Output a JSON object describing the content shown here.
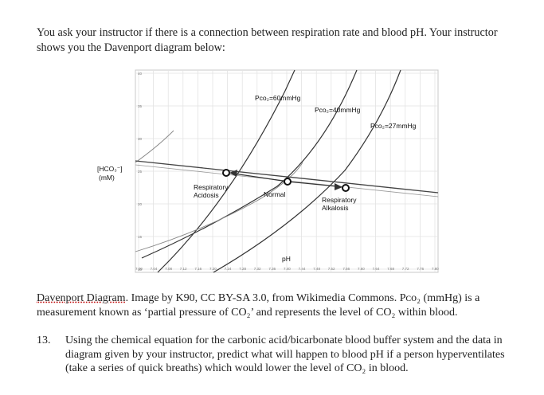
{
  "intro": {
    "text": "You ask your instructor if there is a connection between respiration rate and blood pH. Your instructor shows you the Davenport diagram below:"
  },
  "diagram": {
    "y_axis_label_line1": "[HCO₃⁻]",
    "y_axis_label_line2": "(mM)",
    "x_axis_label": "pH",
    "y_ticks": [
      "40",
      "35",
      "30",
      "25",
      "20",
      "15",
      "10"
    ],
    "x_ticks": [
      "7.00",
      "7.04",
      "7.08",
      "7.12",
      "7.16",
      "7.20",
      "7.24",
      "7.28",
      "7.32",
      "7.36",
      "7.40",
      "7.44",
      "7.48",
      "7.52",
      "7.56",
      "7.60",
      "7.64",
      "7.68",
      "7.72",
      "7.76",
      "7.80"
    ],
    "isobars": [
      {
        "label": "Pco₂=60mmHg"
      },
      {
        "label": "Pco₂=40mmHg"
      },
      {
        "label": "Pco₂=27mmHg"
      }
    ],
    "points": [
      {
        "label_line1": "Respiratory",
        "label_line2": "Acidosis"
      },
      {
        "label_line1": "Normal",
        "label_line2": ""
      },
      {
        "label_line1": "Respiratory",
        "label_line2": "Alkalosis"
      }
    ]
  },
  "caption": {
    "title": "Davenport Diagram",
    "text": ". Image by K90, CC BY-SA 3.0, from Wikimedia Commons. Pᴄᴏ₂ (mmHg) is a measurement known as ‘partial pressure of CO₂’ and represents the level of CO₂ within blood."
  },
  "question": {
    "number": "13.",
    "text": "Using the chemical equation for the carbonic acid/bicarbonate blood buffer system and the data in diagram given by your instructor, predict what will happen to blood pH if a person hyperventilates (take a series of quick breaths) which would lower the level of CO₂ in blood."
  }
}
